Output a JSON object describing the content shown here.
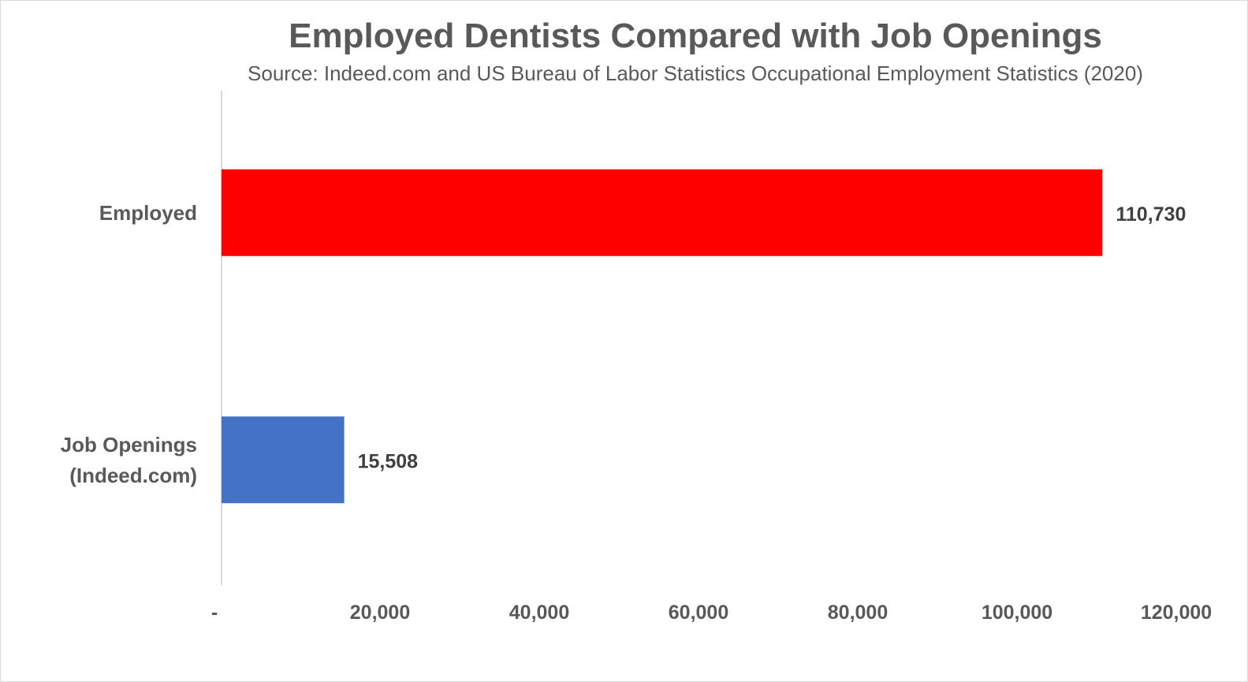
{
  "chart_data": {
    "type": "bar",
    "orientation": "horizontal",
    "title": "Employed Dentists Compared with Job Openings",
    "subtitle": "Source: Indeed.com and US Bureau of Labor Statistics Occupational Employment Statistics (2020)",
    "categories": [
      [
        "Employed"
      ],
      [
        "Job Openings",
        "(Indeed.com)"
      ]
    ],
    "values": [
      110730,
      15508
    ],
    "data_labels": [
      "110,730",
      "15,508"
    ],
    "colors": [
      "#FF0000",
      "#4472C4"
    ],
    "xlim": [
      0,
      120000
    ],
    "x_ticks": [
      0,
      20000,
      40000,
      60000,
      80000,
      100000,
      120000
    ],
    "x_tick_labels": [
      "-",
      "20,000",
      "40,000",
      "60,000",
      "80,000",
      "100,000",
      "120,000"
    ],
    "xlabel": "",
    "ylabel": "",
    "grid": false,
    "legend": "none"
  }
}
